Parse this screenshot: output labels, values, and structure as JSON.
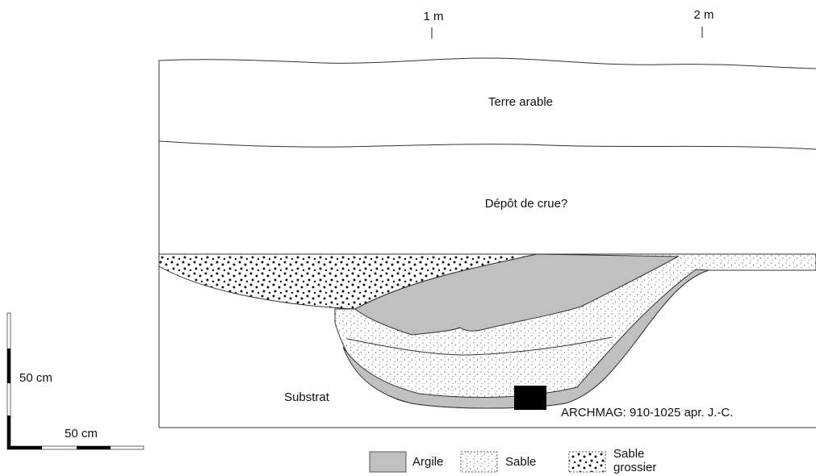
{
  "ruler": {
    "marks": [
      "1 m",
      "2 m"
    ]
  },
  "layers": {
    "top": "Terre arable",
    "middle": "Dépôt de crue?",
    "bottom": "Substrat"
  },
  "date_label": "ARCHMAG: 910-1025 apr. J.-C.",
  "scale": {
    "vertical": "50 cm",
    "horizontal": "50 cm"
  },
  "legend": {
    "clay": "Argile",
    "sand": "Sable",
    "coarse_sand": [
      "Sable",
      "grossier"
    ]
  }
}
